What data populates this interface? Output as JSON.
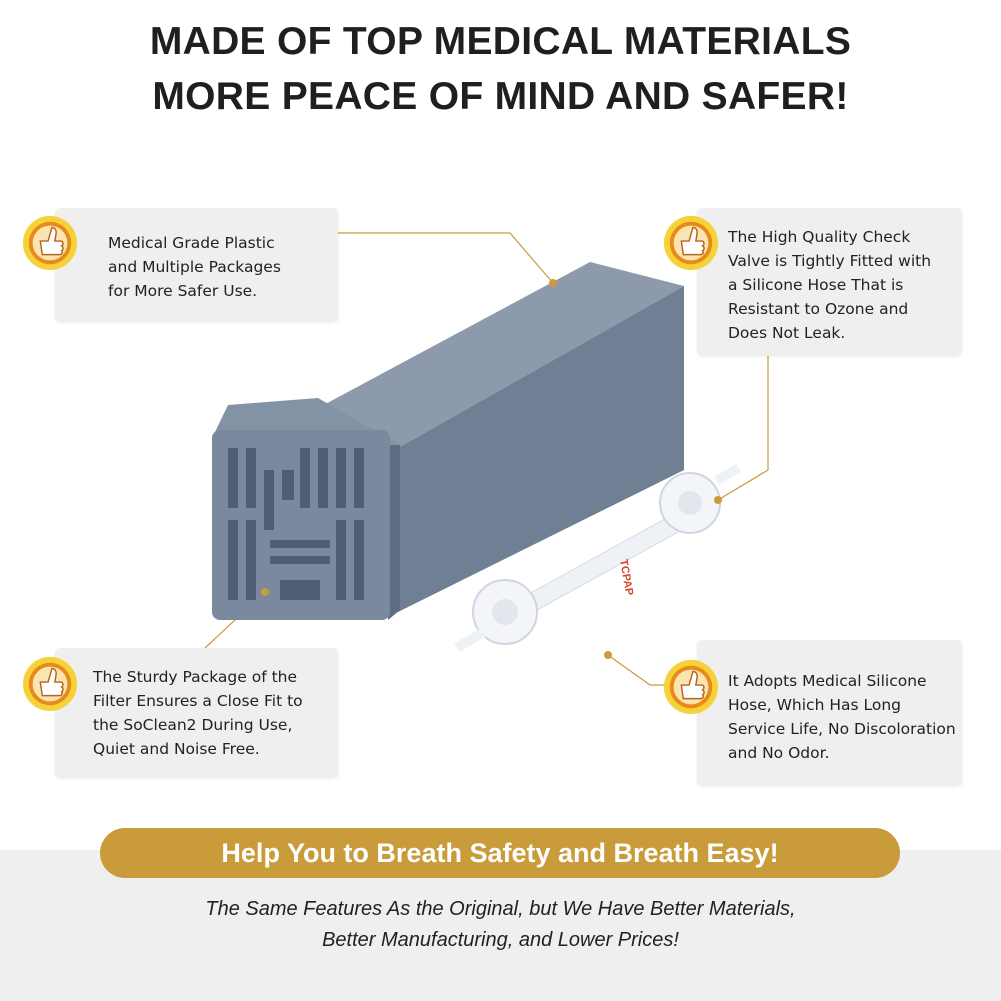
{
  "headline": {
    "line1": "MADE OF TOP MEDICAL MATERIALS",
    "line2": "MORE PEACE OF MIND AND SAFER!"
  },
  "features": [
    {
      "icon": "thumbs-up-icon",
      "lines": [
        "Medical Grade Plastic",
        "and Multiple Packages",
        "for More Safer Use."
      ]
    },
    {
      "icon": "thumbs-up-icon",
      "lines": [
        "The High Quality Check",
        "Valve is Tightly Fitted with",
        "a Silicone Hose That is",
        "Resistant to Ozone and",
        "Does Not Leak."
      ]
    },
    {
      "icon": "thumbs-up-icon",
      "lines": [
        "The Sturdy Package of the",
        "Filter Ensures a Close Fit to",
        "the SoClean2 During Use,",
        "Quiet and Noise Free."
      ]
    },
    {
      "icon": "thumbs-up-icon",
      "lines": [
        "It Adopts Medical Silicone",
        "Hose, Which Has Long",
        "Service Life, No Discoloration",
        "and No Odor."
      ]
    }
  ],
  "hose_label": "TCPAP",
  "banner": "Help You to Breath Safety and Breath Easy!",
  "footer": {
    "line1": "The Same Features As the Original, but We Have Better Materials,",
    "line2": "Better Manufacturing, and Lower Prices!"
  },
  "colors": {
    "accent": "#c99b3a",
    "product": "#7b8a9e",
    "box": "#efefef"
  }
}
